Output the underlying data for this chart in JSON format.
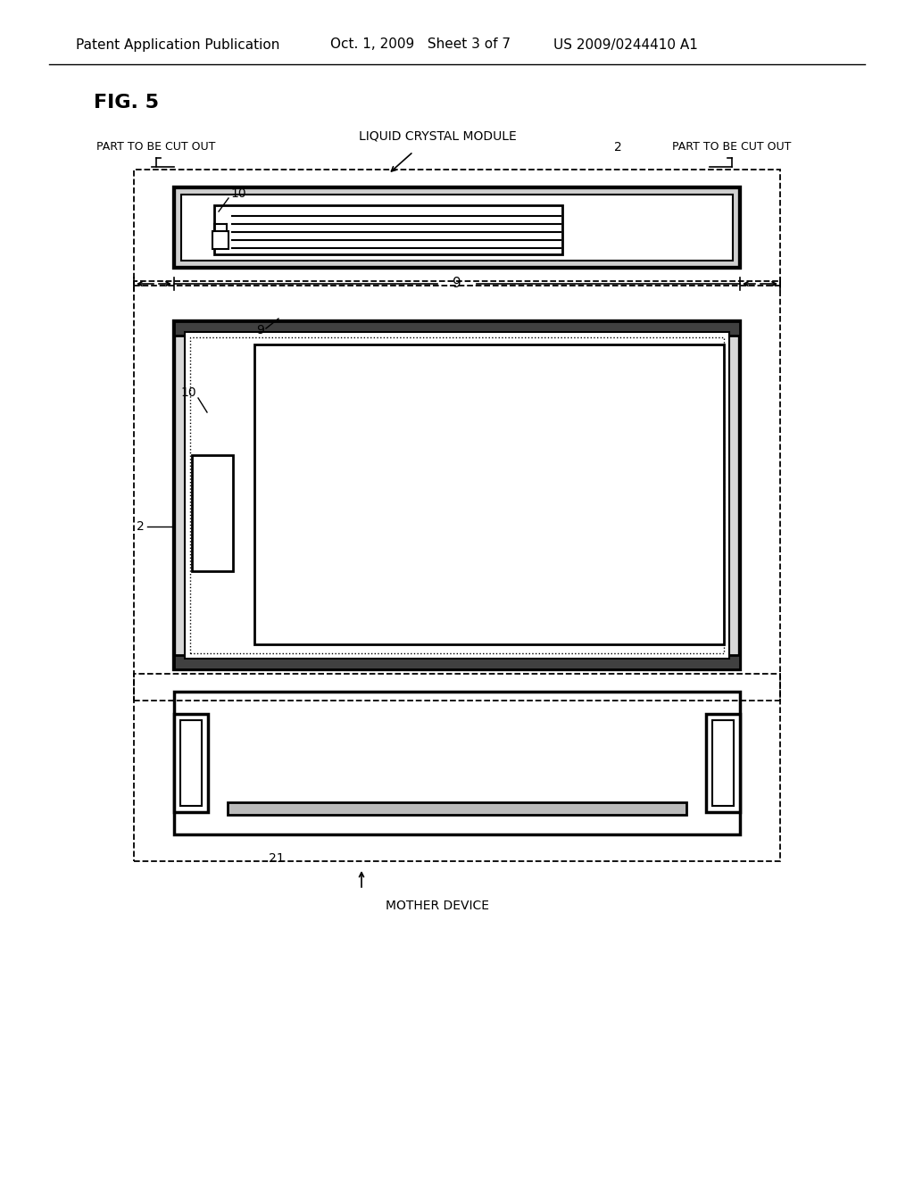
{
  "bg_color": "#ffffff",
  "text_color": "#000000",
  "header_left": "Patent Application Publication",
  "header_mid": "Oct. 1, 2009   Sheet 3 of 7",
  "header_right": "US 2009/0244410 A1",
  "fig_label": "FIG. 5",
  "label_liquid_crystal": "LIQUID CRYSTAL MODULE",
  "label_part_cut_left": "PART TO BE CUT OUT",
  "label_part_cut_right": "PART TO BE CUT OUT",
  "label_mother": "MOTHER DEVICE",
  "label_2": "2",
  "label_9": "9",
  "label_10": "10",
  "label_21": "21"
}
